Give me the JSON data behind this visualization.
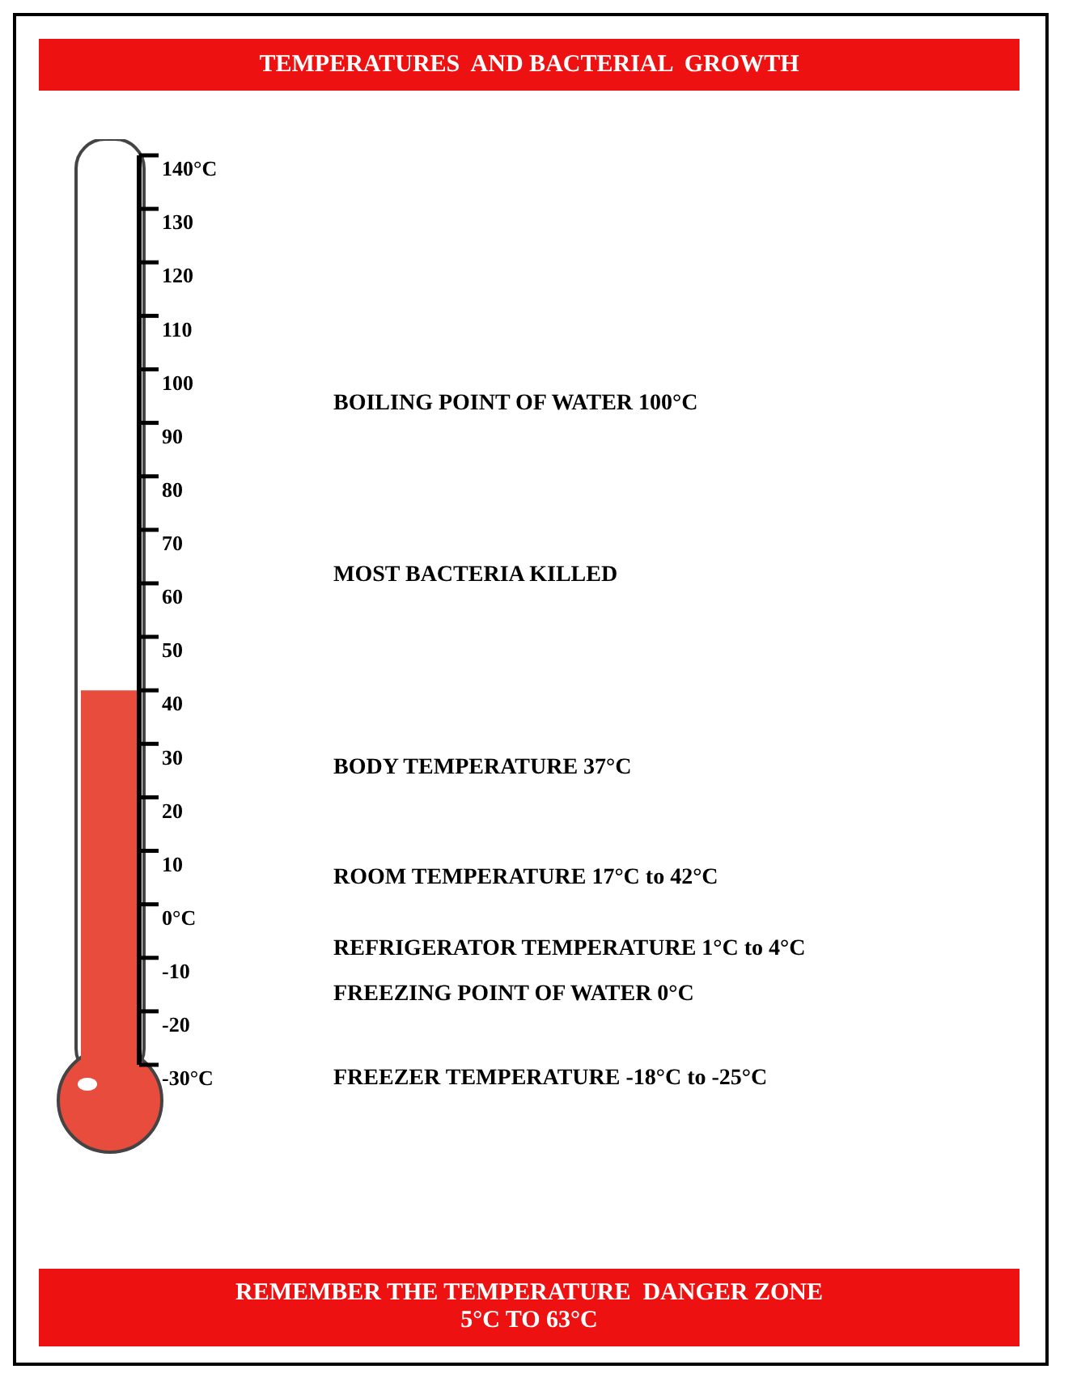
{
  "chart_data": {
    "type": "bar",
    "title": "TEMPERATURES  AND BACTERIAL  GROWTH",
    "categories": [
      null
    ],
    "values": [
      70
    ],
    "base": [
      -30
    ],
    "color": "#e84c3d",
    "ylim": [
      -30,
      140
    ],
    "yticks": [
      {
        "value": -30,
        "label": "-30°C"
      },
      -20,
      -10,
      {
        "value": 0,
        "label": "0°C"
      },
      10,
      20,
      30,
      40,
      50,
      60,
      70,
      80,
      90,
      100,
      110,
      120,
      130,
      {
        "value": 140,
        "label": "140°C"
      }
    ],
    "grid": false,
    "legend": false,
    "annotations": [
      "BOILING POINT OF WATER 100°C",
      "MOST BACTERIA KILLED",
      "BODY TEMPERATURE 37°C",
      "ROOM TEMPERATURE 17°C to 42°C",
      "REFRIGERATOR TEMPERATURE 1°C to 4°C",
      "FREEZING POINT OF WATER 0°C",
      "FREEZER TEMPERATURE -18°C to -25°C",
      "REMEMBER THE TEMPERATURE  DANGER ZONE",
      "5°C TO 63°C"
    ]
  }
}
